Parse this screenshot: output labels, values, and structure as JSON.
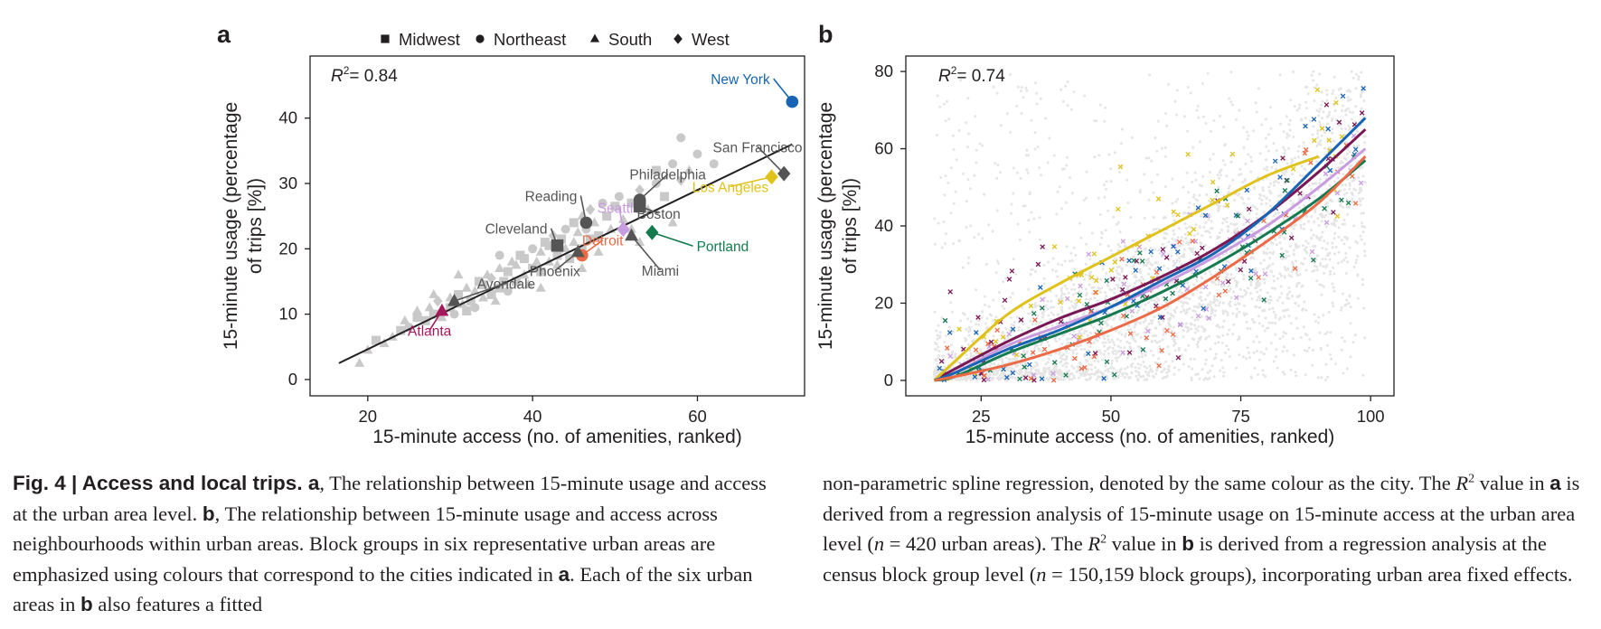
{
  "chart_data": [
    {
      "type": "scatter",
      "panel_label": "a",
      "xlabel": "15-minute access (no. of amenities, ranked)",
      "ylabel": [
        "15-minute usage (percentage",
        "of trips [%])"
      ],
      "xticks": [
        20,
        40,
        60
      ],
      "yticks": [
        0,
        10,
        20,
        30,
        40
      ],
      "xlim": [
        13,
        73
      ],
      "ylim": [
        -2.5,
        49.5
      ],
      "r2_label": "= 0.84",
      "legend": {
        "placement": "top",
        "entries": [
          {
            "label": "Midwest",
            "marker": "square"
          },
          {
            "label": "Northeast",
            "marker": "circle"
          },
          {
            "label": "South",
            "marker": "triangle"
          },
          {
            "label": "West",
            "marker": "diamond"
          }
        ]
      },
      "fit_line": {
        "x": [
          16.5,
          71.5
        ],
        "y": [
          2.5,
          36.0
        ],
        "color": "#231f20"
      },
      "background_color": "#c9c9c9",
      "background_points": [
        [
          19,
          2.5,
          "t"
        ],
        [
          20,
          4.5,
          "t"
        ],
        [
          21,
          6,
          "s"
        ],
        [
          22,
          5.5,
          "t"
        ],
        [
          23,
          6.5,
          "t"
        ],
        [
          24,
          7.5,
          "s"
        ],
        [
          24.5,
          9,
          "t"
        ],
        [
          25,
          8,
          "c"
        ],
        [
          26,
          9.5,
          "s"
        ],
        [
          26,
          10.5,
          "t"
        ],
        [
          27,
          9,
          "s"
        ],
        [
          27.5,
          11,
          "t"
        ],
        [
          28,
          10,
          "s"
        ],
        [
          28.5,
          12,
          "d"
        ],
        [
          29,
          9.5,
          "t"
        ],
        [
          30,
          11,
          "s"
        ],
        [
          30,
          12.5,
          "t"
        ],
        [
          30.5,
          10,
          "c"
        ],
        [
          31,
          13,
          "s"
        ],
        [
          31.5,
          11.5,
          "t"
        ],
        [
          32,
          10.5,
          "s"
        ],
        [
          32,
          14,
          "t"
        ],
        [
          32.5,
          12,
          "s"
        ],
        [
          33,
          13.5,
          "t"
        ],
        [
          33,
          11,
          "c"
        ],
        [
          33.5,
          15,
          "s"
        ],
        [
          34,
          12.5,
          "t"
        ],
        [
          34,
          14.5,
          "s"
        ],
        [
          34.5,
          16,
          "t"
        ],
        [
          35,
          13,
          "s"
        ],
        [
          35,
          15.5,
          "d"
        ],
        [
          35.5,
          12,
          "t"
        ],
        [
          36,
          14,
          "s"
        ],
        [
          36,
          17,
          "t"
        ],
        [
          36.5,
          15,
          "s"
        ],
        [
          37,
          13.5,
          "c"
        ],
        [
          37,
          16.5,
          "s"
        ],
        [
          37.5,
          18,
          "t"
        ],
        [
          38,
          15,
          "s"
        ],
        [
          38,
          17.5,
          "t"
        ],
        [
          38.5,
          19,
          "s"
        ],
        [
          39,
          16,
          "t"
        ],
        [
          39,
          18.5,
          "s"
        ],
        [
          39.5,
          14.5,
          "t"
        ],
        [
          40,
          17,
          "s"
        ],
        [
          40,
          20,
          "c"
        ],
        [
          40.5,
          18,
          "t"
        ],
        [
          41,
          16.5,
          "s"
        ],
        [
          41,
          19.5,
          "t"
        ],
        [
          41.5,
          21,
          "s"
        ],
        [
          42,
          18,
          "t"
        ],
        [
          42,
          20.5,
          "s"
        ],
        [
          42.5,
          22,
          "d"
        ],
        [
          43,
          19,
          "s"
        ],
        [
          43,
          17.5,
          "t"
        ],
        [
          43.5,
          21.5,
          "s"
        ],
        [
          44,
          20,
          "t"
        ],
        [
          44,
          23,
          "c"
        ],
        [
          44.5,
          18.5,
          "s"
        ],
        [
          45,
          21,
          "t"
        ],
        [
          45,
          24,
          "s"
        ],
        [
          45.5,
          22.5,
          "t"
        ],
        [
          46,
          20,
          "s"
        ],
        [
          46,
          25,
          "t"
        ],
        [
          46.5,
          23,
          "c"
        ],
        [
          47,
          21.5,
          "s"
        ],
        [
          47,
          26,
          "d"
        ],
        [
          47.5,
          24,
          "t"
        ],
        [
          48,
          22,
          "s"
        ],
        [
          48.5,
          27,
          "c"
        ],
        [
          49,
          25,
          "s"
        ],
        [
          49.5,
          23,
          "t"
        ],
        [
          50,
          26.5,
          "s"
        ],
        [
          50.5,
          28,
          "c"
        ],
        [
          51,
          24.5,
          "t"
        ],
        [
          52,
          27,
          "s"
        ],
        [
          53,
          29,
          "d"
        ],
        [
          54,
          26,
          "t"
        ],
        [
          55,
          30,
          "c"
        ],
        [
          56,
          28,
          "s"
        ],
        [
          57,
          33,
          "c"
        ],
        [
          58,
          30.5,
          "d"
        ],
        [
          59,
          32,
          "t"
        ],
        [
          60,
          34.5,
          "c"
        ],
        [
          58,
          37,
          "c"
        ],
        [
          55,
          32,
          "s"
        ],
        [
          52,
          23,
          "t"
        ],
        [
          48,
          19.5,
          "t"
        ],
        [
          36,
          19,
          "c"
        ],
        [
          31,
          16,
          "t"
        ],
        [
          28,
          13,
          "t"
        ],
        [
          41,
          14,
          "t"
        ],
        [
          46,
          17,
          "t"
        ],
        [
          53,
          21,
          "t"
        ],
        [
          57,
          24,
          "t"
        ],
        [
          62,
          33,
          "c"
        ]
      ],
      "highlight_points": [
        {
          "name": "New York",
          "x": 71.5,
          "y": 42.5,
          "marker": "circle",
          "color": "#1764b5",
          "label_color": "#1764b5",
          "label_anchor": "end",
          "label_x": 68.8,
          "label_y": 45.2
        },
        {
          "name": "San Francisco",
          "x": 70.5,
          "y": 31.5,
          "marker": "diamond",
          "color": "#555555",
          "label_color": "#555555",
          "label_anchor": "middle",
          "label_x": 67.3,
          "label_y": 34.8
        },
        {
          "name": "Los Angeles",
          "x": 69,
          "y": 31,
          "marker": "diamond",
          "color": "#e0c21b",
          "label_color": "#e0c21b",
          "label_anchor": "middle",
          "label_x": 64,
          "label_y": 28.7
        },
        {
          "name": "Philadelphia",
          "x": 53,
          "y": 27.5,
          "marker": "circle",
          "color": "#555555",
          "label_color": "#555555",
          "label_anchor": "middle",
          "label_x": 56.4,
          "label_y": 30.6
        },
        {
          "name": "Reading",
          "x": 46.5,
          "y": 24,
          "marker": "circle",
          "color": "#555555",
          "label_color": "#555555",
          "label_anchor": "end",
          "label_x": 45.4,
          "label_y": 27.3
        },
        {
          "name": "Seattle",
          "x": 51,
          "y": 23,
          "marker": "diamond",
          "color": "#c99be0",
          "label_color": "#c99be0",
          "label_anchor": "middle",
          "label_x": 50.5,
          "label_y": 25.5
        },
        {
          "name": "Boston",
          "x": 53,
          "y": 26.5,
          "marker": "square",
          "color": "#555555",
          "label_color": "#555555",
          "label_anchor": "middle",
          "label_x": 55.3,
          "label_y": 24.6
        },
        {
          "name": "Cleveland",
          "x": 43,
          "y": 20.5,
          "marker": "square",
          "color": "#555555",
          "label_color": "#555555",
          "label_anchor": "end",
          "label_x": 41.8,
          "label_y": 22.3
        },
        {
          "name": "Detroit",
          "x": 46,
          "y": 19,
          "marker": "circle",
          "color": "#ec6a45",
          "label_color": "#ec6a45",
          "label_anchor": "middle",
          "label_x": 48.5,
          "label_y": 20.5
        },
        {
          "name": "Portland",
          "x": 54.5,
          "y": 22.5,
          "marker": "diamond",
          "color": "#157a50",
          "label_color": "#157a50",
          "label_anchor": "start",
          "label_x": 59.9,
          "label_y": 19.6
        },
        {
          "name": "Miami",
          "x": 52,
          "y": 22,
          "marker": "triangle",
          "color": "#555555",
          "label_color": "#555555",
          "label_anchor": "middle",
          "label_x": 55.5,
          "label_y": 15.9
        },
        {
          "name": "Phoenix",
          "x": 45.5,
          "y": 19.5,
          "marker": "triangle",
          "color": "#555555",
          "label_color": "#555555",
          "label_anchor": "middle",
          "label_x": 42.7,
          "label_y": 15.8
        },
        {
          "name": "Avondale",
          "x": 30.5,
          "y": 12,
          "marker": "triangle",
          "color": "#555555",
          "label_color": "#555555",
          "label_anchor": "middle",
          "label_x": 36.8,
          "label_y": 13.9
        },
        {
          "name": "Atlanta",
          "x": 29,
          "y": 10.5,
          "marker": "triangle",
          "color": "#a3195b",
          "label_color": "#a3195b",
          "label_anchor": "middle",
          "label_x": 27.5,
          "label_y": 6.7
        }
      ]
    },
    {
      "type": "scatter",
      "panel_label": "b",
      "xlabel": "15-minute access (no. of amenities, ranked)",
      "ylabel": [
        "15-minute usage (percentage",
        "of trips [%])"
      ],
      "xticks": [
        25,
        50,
        75,
        100
      ],
      "yticks": [
        0,
        20,
        40,
        60,
        80
      ],
      "xlim": [
        10.5,
        104.5
      ],
      "ylim": [
        -4,
        84
      ],
      "r2_label": "= 0.74",
      "background_color": "#e5e5e5",
      "background_description": "150,159 block groups",
      "series": [
        {
          "name": "Atlanta",
          "color": "#7a1755",
          "curve_x": [
            16,
            20,
            30,
            40,
            50,
            60,
            70,
            80,
            90,
            99
          ],
          "curve_y": [
            0,
            3,
            10,
            16,
            21,
            27,
            34,
            43,
            54,
            65
          ]
        },
        {
          "name": "Seattle",
          "color": "#c99be0",
          "curve_x": [
            16,
            20,
            30,
            40,
            50,
            60,
            70,
            80,
            90,
            99
          ],
          "curve_y": [
            0,
            2,
            9,
            14,
            19,
            25,
            32,
            40,
            50,
            60
          ]
        },
        {
          "name": "Los Angeles",
          "color": "#e0c21b",
          "curve_x": [
            16,
            20,
            30,
            40,
            50,
            60,
            70,
            80,
            90
          ],
          "curve_y": [
            0,
            5,
            17,
            25,
            32,
            39,
            46,
            53,
            58
          ]
        },
        {
          "name": "New York",
          "color": "#1764b5",
          "curve_x": [
            16,
            20,
            30,
            40,
            50,
            60,
            70,
            80,
            90,
            99
          ],
          "curve_y": [
            0,
            2,
            8,
            13,
            19,
            26,
            33,
            43,
            56,
            68
          ]
        },
        {
          "name": "Portland",
          "color": "#157a50",
          "curve_x": [
            16,
            20,
            30,
            40,
            50,
            60,
            70,
            80,
            90,
            99
          ],
          "curve_y": [
            0,
            1,
            7,
            12,
            17,
            23,
            30,
            38,
            47,
            57
          ]
        },
        {
          "name": "Detroit",
          "color": "#ec6a45",
          "curve_x": [
            16,
            20,
            30,
            40,
            50,
            60,
            70,
            80,
            90,
            99
          ],
          "curve_y": [
            0,
            1,
            4,
            8,
            13,
            19,
            27,
            36,
            46,
            58
          ]
        }
      ]
    }
  ],
  "caption": {
    "left": {
      "fig_label": "Fig. 4 | Access and local trips. ",
      "panel_a": "a",
      "text_1": ", The relationship between 15-minute usage and access at the urban area level. ",
      "panel_b": "b",
      "text_2": ", The relationship between 15-minute usage and access across neighbourhoods within urban areas. Block groups in six representative urban areas are emphasized using colours that correspond to the cities indicated in ",
      "panel_a2": "a",
      "text_3": ". Each of the six urban areas in ",
      "panel_b2": "b",
      "text_4": " also features a fitted"
    },
    "right": {
      "text_1": "non-parametric spline regression, denoted by the same colour as the city. The ",
      "r2_a": "R",
      "sup_a": "2",
      "text_2": " value in ",
      "panel_a": "a",
      "text_3": " is derived from a regression analysis of 15-minute usage on 15-minute access at the urban area level (",
      "n_a": "n",
      "text_4": " = 420 urban areas). The ",
      "r2_b": "R",
      "sup_b": "2",
      "text_5": " value in ",
      "panel_b": "b",
      "text_6": " is derived from a regression analysis at the census block group level (",
      "n_b": "n",
      "text_7": " = 150,159 block groups), incorporating urban area fixed effects."
    }
  }
}
